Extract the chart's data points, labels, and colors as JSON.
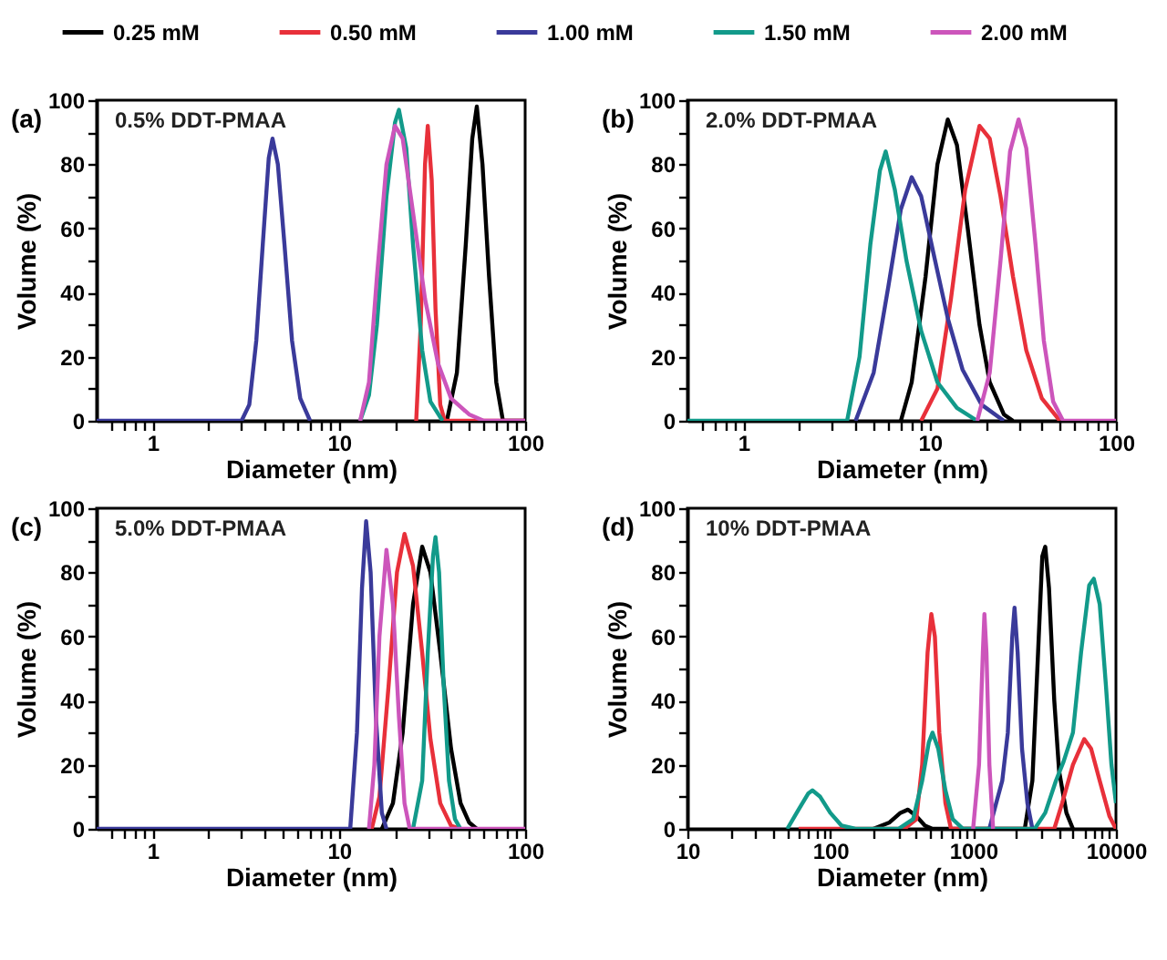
{
  "chart_data": [
    {
      "type": "line",
      "title": "(a)",
      "annotations": [
        "0.5% DDT-PMAA"
      ],
      "xlabel": "Diameter (nm)",
      "ylabel": "Volume (%)",
      "log": "x",
      "legend": "top",
      "xlim": [
        0.5,
        100
      ],
      "xticks": [
        {
          "value": 0.6,
          "label": null
        },
        {
          "value": 0.7,
          "label": null
        },
        {
          "value": 0.8,
          "label": null
        },
        {
          "value": 0.9,
          "label": null
        },
        1,
        {
          "value": 2,
          "label": null
        },
        {
          "value": 3,
          "label": null
        },
        {
          "value": 4,
          "label": null
        },
        {
          "value": 5,
          "label": null
        },
        {
          "value": 6,
          "label": null
        },
        {
          "value": 7,
          "label": null
        },
        {
          "value": 8,
          "label": null
        },
        {
          "value": 9,
          "label": null
        },
        10,
        {
          "value": 20,
          "label": null
        },
        {
          "value": 30,
          "label": null
        },
        {
          "value": 40,
          "label": null
        },
        {
          "value": 50,
          "label": null
        },
        {
          "value": 60,
          "label": null
        },
        {
          "value": 70,
          "label": null
        },
        {
          "value": 80,
          "label": null
        },
        {
          "value": 90,
          "label": null
        },
        100
      ],
      "ylim": [
        0,
        100
      ],
      "yticks": [
        0,
        {
          "value": 10,
          "label": null
        },
        20,
        {
          "value": 30,
          "label": null
        },
        40,
        {
          "value": 50,
          "label": null
        },
        60,
        {
          "value": 70,
          "label": null
        },
        80,
        {
          "value": 90,
          "label": null
        },
        100
      ],
      "series": [
        {
          "name": "0.25 mM",
          "color": "#000000",
          "x": [
            38,
            43,
            48,
            52,
            55,
            59,
            64,
            70,
            76,
            100
          ],
          "values": [
            0,
            15,
            55,
            88,
            98,
            80,
            45,
            12,
            0,
            0
          ]
        },
        {
          "name": "0.50 mM",
          "color": "#e8303a",
          "x": [
            26,
            27.5,
            29,
            30,
            31.5,
            33,
            35,
            37,
            100
          ],
          "values": [
            0,
            30,
            80,
            92,
            75,
            35,
            5,
            0,
            0
          ]
        },
        {
          "name": "1.00 mM",
          "color": "#3a3a9a",
          "x": [
            0.5,
            3,
            3.3,
            3.6,
            3.9,
            4.2,
            4.4,
            4.7,
            5.1,
            5.6,
            6.2,
            7
          ],
          "values": [
            0,
            0,
            5,
            25,
            55,
            82,
            88,
            80,
            55,
            25,
            7,
            0
          ]
        },
        {
          "name": "1.50 mM",
          "color": "#129a8a",
          "x": [
            13,
            14.5,
            16,
            18,
            20,
            21,
            23,
            25,
            28,
            31,
            36
          ],
          "values": [
            0,
            8,
            30,
            70,
            93,
            97,
            85,
            55,
            22,
            6,
            0
          ]
        },
        {
          "name": "2.00 mM",
          "color": "#cc55bb",
          "x": [
            13,
            14.5,
            16,
            18,
            20,
            22,
            25,
            29,
            34,
            40,
            50,
            60,
            100
          ],
          "values": [
            0,
            12,
            45,
            80,
            92,
            88,
            65,
            38,
            18,
            7,
            2,
            0,
            0
          ]
        }
      ]
    },
    {
      "type": "line",
      "title": "(b)",
      "annotations": [
        "2.0% DDT-PMAA"
      ],
      "xlabel": "Diameter (nm)",
      "ylabel": "Volume (%)",
      "log": "x",
      "xlim": [
        0.5,
        100
      ],
      "xticks": [
        {
          "value": 0.6,
          "label": null
        },
        {
          "value": 0.7,
          "label": null
        },
        {
          "value": 0.8,
          "label": null
        },
        {
          "value": 0.9,
          "label": null
        },
        1,
        {
          "value": 2,
          "label": null
        },
        {
          "value": 3,
          "label": null
        },
        {
          "value": 4,
          "label": null
        },
        {
          "value": 5,
          "label": null
        },
        {
          "value": 6,
          "label": null
        },
        {
          "value": 7,
          "label": null
        },
        {
          "value": 8,
          "label": null
        },
        {
          "value": 9,
          "label": null
        },
        10,
        {
          "value": 20,
          "label": null
        },
        {
          "value": 30,
          "label": null
        },
        {
          "value": 40,
          "label": null
        },
        {
          "value": 50,
          "label": null
        },
        {
          "value": 60,
          "label": null
        },
        {
          "value": 70,
          "label": null
        },
        {
          "value": 80,
          "label": null
        },
        {
          "value": 90,
          "label": null
        },
        100
      ],
      "ylim": [
        0,
        100
      ],
      "yticks": [
        0,
        {
          "value": 10,
          "label": null
        },
        20,
        {
          "value": 30,
          "label": null
        },
        40,
        {
          "value": 50,
          "label": null
        },
        60,
        {
          "value": 70,
          "label": null
        },
        80,
        {
          "value": 90,
          "label": null
        },
        100
      ],
      "series": [
        {
          "color": "#000000",
          "x": [
            7,
            8,
            9.5,
            11,
            12.5,
            14,
            16,
            18.5,
            21,
            25,
            28
          ],
          "values": [
            0,
            12,
            45,
            80,
            94,
            86,
            60,
            30,
            12,
            2,
            0
          ]
        },
        {
          "color": "#e8303a",
          "x": [
            9,
            11,
            13,
            15.5,
            18.5,
            21,
            24,
            28,
            33,
            40,
            50
          ],
          "values": [
            0,
            10,
            38,
            72,
            92,
            88,
            70,
            45,
            22,
            7,
            0
          ]
        },
        {
          "color": "#3a3a9a",
          "x": [
            4,
            5,
            6,
            7,
            8,
            9,
            10.5,
            12.5,
            15,
            19,
            25
          ],
          "values": [
            0,
            15,
            42,
            66,
            76,
            70,
            52,
            32,
            16,
            5,
            0
          ]
        },
        {
          "color": "#129a8a",
          "x": [
            0.5,
            3.6,
            4.2,
            4.8,
            5.4,
            5.8,
            6.5,
            7.5,
            9,
            11,
            14,
            18
          ],
          "values": [
            0,
            0,
            20,
            55,
            78,
            84,
            72,
            50,
            28,
            12,
            4,
            0
          ]
        },
        {
          "color": "#cc55bb",
          "x": [
            18,
            21,
            24,
            27,
            30,
            33,
            37,
            41,
            46,
            52,
            100
          ],
          "values": [
            0,
            15,
            50,
            84,
            94,
            85,
            55,
            25,
            6,
            0,
            0
          ]
        }
      ]
    },
    {
      "type": "line",
      "title": "(c)",
      "annotations": [
        "5.0% DDT-PMAA"
      ],
      "xlabel": "Diameter (nm)",
      "ylabel": "Volume (%)",
      "log": "x",
      "xlim": [
        0.5,
        100
      ],
      "xticks": [
        {
          "value": 0.6,
          "label": null
        },
        {
          "value": 0.7,
          "label": null
        },
        {
          "value": 0.8,
          "label": null
        },
        {
          "value": 0.9,
          "label": null
        },
        1,
        {
          "value": 2,
          "label": null
        },
        {
          "value": 3,
          "label": null
        },
        {
          "value": 4,
          "label": null
        },
        {
          "value": 5,
          "label": null
        },
        {
          "value": 6,
          "label": null
        },
        {
          "value": 7,
          "label": null
        },
        {
          "value": 8,
          "label": null
        },
        {
          "value": 9,
          "label": null
        },
        10,
        {
          "value": 20,
          "label": null
        },
        {
          "value": 30,
          "label": null
        },
        {
          "value": 40,
          "label": null
        },
        {
          "value": 50,
          "label": null
        },
        {
          "value": 60,
          "label": null
        },
        {
          "value": 70,
          "label": null
        },
        {
          "value": 80,
          "label": null
        },
        {
          "value": 90,
          "label": null
        },
        100
      ],
      "ylim": [
        0,
        100
      ],
      "yticks": [
        0,
        {
          "value": 10,
          "label": null
        },
        20,
        {
          "value": 30,
          "label": null
        },
        40,
        {
          "value": 50,
          "label": null
        },
        60,
        {
          "value": 70,
          "label": null
        },
        80,
        {
          "value": 90,
          "label": null
        },
        100
      ],
      "series": [
        {
          "color": "#000000",
          "x": [
            17,
            19.5,
            22,
            25,
            28,
            31,
            35,
            40,
            45,
            50,
            55
          ],
          "values": [
            0,
            8,
            30,
            70,
            88,
            80,
            55,
            25,
            8,
            2,
            0
          ]
        },
        {
          "color": "#e8303a",
          "x": [
            15,
            16.5,
            18.5,
            20.5,
            22.5,
            25,
            28,
            31,
            35,
            40,
            45
          ],
          "values": [
            0,
            10,
            45,
            80,
            92,
            82,
            55,
            28,
            8,
            1,
            0
          ]
        },
        {
          "color": "#3a3a9a",
          "x": [
            0.5,
            11.5,
            12.5,
            13.3,
            14,
            14.8,
            15.8,
            17,
            18
          ],
          "values": [
            0,
            0,
            30,
            75,
            96,
            80,
            35,
            5,
            0
          ]
        },
        {
          "color": "#129a8a",
          "x": [
            25,
            28,
            30,
            32,
            33,
            34.5,
            36.5,
            39,
            42,
            45
          ],
          "values": [
            0,
            15,
            55,
            85,
            91,
            80,
            45,
            15,
            3,
            0
          ]
        },
        {
          "color": "#cc55bb",
          "x": [
            14.5,
            15.5,
            16.5,
            18,
            19.5,
            21,
            22.5,
            24,
            100
          ],
          "values": [
            0,
            20,
            60,
            87,
            70,
            35,
            8,
            0,
            0
          ]
        }
      ]
    },
    {
      "type": "line",
      "title": "(d)",
      "annotations": [
        "10%  DDT-PMAA"
      ],
      "xlabel": "Diameter (nm)",
      "ylabel": "Volume (%)",
      "log": "x",
      "xlim": [
        10,
        10000
      ],
      "xticks": [
        10,
        {
          "value": 20,
          "label": null
        },
        {
          "value": 30,
          "label": null
        },
        {
          "value": 40,
          "label": null
        },
        {
          "value": 50,
          "label": null
        },
        {
          "value": 60,
          "label": null
        },
        {
          "value": 70,
          "label": null
        },
        {
          "value": 80,
          "label": null
        },
        {
          "value": 90,
          "label": null
        },
        100,
        {
          "value": 200,
          "label": null
        },
        {
          "value": 300,
          "label": null
        },
        {
          "value": 400,
          "label": null
        },
        {
          "value": 500,
          "label": null
        },
        {
          "value": 600,
          "label": null
        },
        {
          "value": 700,
          "label": null
        },
        {
          "value": 800,
          "label": null
        },
        {
          "value": 900,
          "label": null
        },
        1000,
        {
          "value": 2000,
          "label": null
        },
        {
          "value": 3000,
          "label": null
        },
        {
          "value": 4000,
          "label": null
        },
        {
          "value": 5000,
          "label": null
        },
        {
          "value": 6000,
          "label": null
        },
        {
          "value": 7000,
          "label": null
        },
        {
          "value": 8000,
          "label": null
        },
        {
          "value": 9000,
          "label": null
        },
        10000
      ],
      "ylim": [
        0,
        100
      ],
      "yticks": [
        0,
        {
          "value": 10,
          "label": null
        },
        20,
        {
          "value": 30,
          "label": null
        },
        40,
        {
          "value": 50,
          "label": null
        },
        60,
        {
          "value": 70,
          "label": null
        },
        80,
        {
          "value": 90,
          "label": null
        },
        100
      ],
      "series": [
        {
          "color": "#000000",
          "x": [
            200,
            260,
            310,
            350,
            400,
            460,
            520,
            2300,
            2600,
            2850,
            3050,
            3200,
            3400,
            3700,
            4000,
            4500,
            5000
          ],
          "values": [
            0,
            2,
            5,
            6,
            4,
            1,
            0,
            0,
            15,
            55,
            85,
            88,
            75,
            40,
            18,
            5,
            0
          ]
        },
        {
          "color": "#e8303a",
          "x": [
            60,
            330,
            400,
            440,
            480,
            510,
            540,
            580,
            640,
            700,
            3700,
            4200,
            5000,
            6000,
            6700,
            7700,
            9000,
            10000
          ],
          "values": [
            0,
            0,
            3,
            20,
            55,
            67,
            60,
            30,
            8,
            0,
            0,
            8,
            20,
            28,
            25,
            15,
            4,
            0
          ]
        },
        {
          "color": "#3a3a9a",
          "x": [
            1300,
            1450,
            1600,
            1750,
            1880,
            1950,
            2050,
            2200,
            2400,
            2600
          ],
          "values": [
            0,
            8,
            15,
            30,
            60,
            69,
            55,
            25,
            8,
            0
          ]
        },
        {
          "color": "#129a8a",
          "x": [
            50,
            60,
            70,
            75,
            85,
            100,
            120,
            150,
            300,
            380,
            440,
            490,
            520,
            570,
            640,
            720,
            850,
            2700,
            3200,
            3800,
            4300,
            5000,
            5700,
            6500,
            7000,
            7700,
            8500,
            9300,
            10000
          ],
          "values": [
            0,
            6,
            11,
            12,
            10,
            5,
            1,
            0,
            0,
            3,
            15,
            27,
            30,
            25,
            12,
            3,
            0,
            0,
            5,
            15,
            21,
            30,
            55,
            76,
            78,
            70,
            45,
            20,
            8
          ]
        },
        {
          "color": "#cc55bb",
          "x": [
            1000,
            1100,
            1170,
            1200,
            1240,
            1300,
            1380
          ],
          "values": [
            0,
            20,
            55,
            67,
            55,
            20,
            0
          ]
        }
      ]
    }
  ]
}
